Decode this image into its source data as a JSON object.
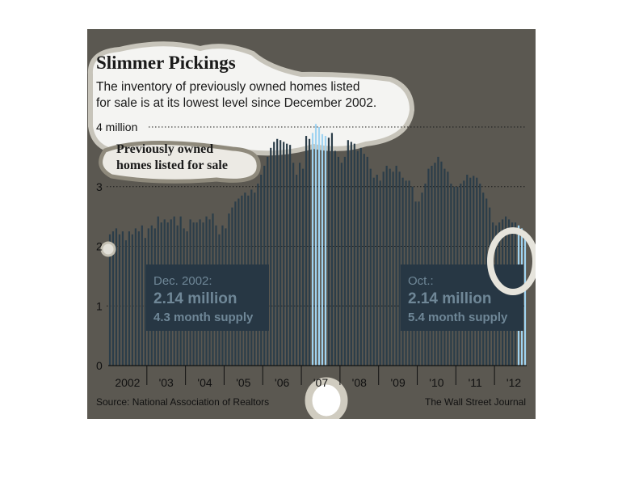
{
  "chart_data": {
    "type": "bar",
    "title": "Slimmer Pickings",
    "subtitle_lines": [
      "The inventory of previously owned homes listed",
      "for sale is at its lowest level since December 2002."
    ],
    "series_label_lines": [
      "Previously owned",
      "homes listed for sale"
    ],
    "y_unit_label": "4 million",
    "y_ticks": [
      "0",
      "1",
      "2",
      "3"
    ],
    "ylim": [
      0,
      4
    ],
    "x_tick_labels": [
      "2002",
      "'03",
      "'04",
      "'05",
      "'06",
      "'07",
      "'08",
      "'09",
      "'10",
      "'11",
      "'12"
    ],
    "x_range": [
      "2002-01",
      "2012-10"
    ],
    "grid": true,
    "series": [
      {
        "name": "Previously owned homes listed for sale",
        "values": [
          2.2,
          2.25,
          2.3,
          2.2,
          2.25,
          2.1,
          2.25,
          2.2,
          2.3,
          2.25,
          2.35,
          2.14,
          2.3,
          2.35,
          2.3,
          2.5,
          2.4,
          2.45,
          2.4,
          2.45,
          2.5,
          2.35,
          2.5,
          2.3,
          2.25,
          2.45,
          2.4,
          2.4,
          2.45,
          2.4,
          2.5,
          2.45,
          2.55,
          2.35,
          2.2,
          2.35,
          2.3,
          2.55,
          2.65,
          2.75,
          2.8,
          2.85,
          2.9,
          2.85,
          2.95,
          2.9,
          3.05,
          3.2,
          3.35,
          3.5,
          3.65,
          3.75,
          3.8,
          3.78,
          3.75,
          3.72,
          3.7,
          3.4,
          3.2,
          3.4,
          3.3,
          3.85,
          3.8,
          3.9,
          4.05,
          4.0,
          3.88,
          3.85,
          3.82,
          3.9,
          3.6,
          3.5,
          3.4,
          3.5,
          3.78,
          3.75,
          3.72,
          3.6,
          3.65,
          3.55,
          3.5,
          3.3,
          3.15,
          3.2,
          3.1,
          3.25,
          3.35,
          3.3,
          3.25,
          3.35,
          3.25,
          3.15,
          3.1,
          3.1,
          3.0,
          2.75,
          2.75,
          2.9,
          3.05,
          3.3,
          3.35,
          3.4,
          3.5,
          3.42,
          3.3,
          3.25,
          3.05,
          3.0,
          3.0,
          3.05,
          3.1,
          3.2,
          3.15,
          3.18,
          3.15,
          3.05,
          2.9,
          2.8,
          2.65,
          2.4,
          2.35,
          2.4,
          2.45,
          2.5,
          2.45,
          2.4,
          2.4,
          2.35,
          2.3,
          2.14
        ]
      }
    ],
    "annotations": [
      {
        "date": "Dec. 2002:",
        "value": "2.14 million",
        "supply": "4.3 month supply"
      },
      {
        "date": "Oct.:",
        "value": "2.14 million",
        "supply": "5.4 month supply"
      }
    ],
    "source": "Source: National Association of Realtors",
    "credit": "The Wall Street Journal"
  },
  "colors": {
    "background": "#5b5851",
    "bar": "#2b3d49",
    "bar_highlight": "#9fd3f1",
    "annotation_box": "#273744",
    "annotation_text": "#6f8797"
  }
}
